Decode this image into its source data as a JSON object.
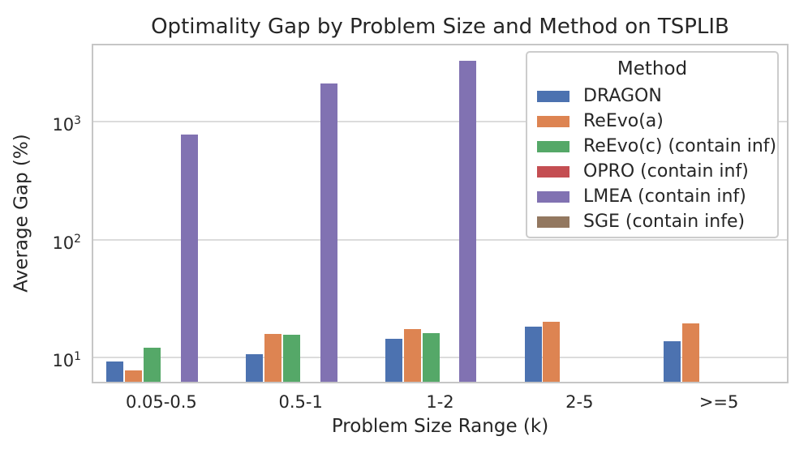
{
  "chart_data": {
    "type": "bar",
    "title": "Optimality Gap by Problem Size and Method on TSPLIB",
    "xlabel": "Problem Size Range (k)",
    "ylabel": "Average Gap (%)",
    "yscale": "log",
    "ylim": [
      6,
      4600
    ],
    "grid": true,
    "yticks": [
      {
        "base": "10",
        "exp": "1",
        "value": 10
      },
      {
        "base": "10",
        "exp": "2",
        "value": 100
      },
      {
        "base": "10",
        "exp": "3",
        "value": 1000
      }
    ],
    "categories": [
      "0.05-0.5",
      "0.5-1",
      "1-2",
      "2-5",
      ">=5"
    ],
    "series": [
      {
        "name": "DRAGON",
        "color": "#4c72b0",
        "values": [
          9.2,
          10.6,
          14.4,
          18.2,
          13.7
        ]
      },
      {
        "name": "ReEvo(a)",
        "color": "#dd8452",
        "values": [
          7.7,
          15.8,
          17.3,
          20.0,
          19.4
        ]
      },
      {
        "name": "ReEvo(c) (contain inf)",
        "color": "#55a868",
        "values": [
          12.1,
          15.6,
          16.0,
          null,
          null
        ]
      },
      {
        "name": "OPRO (contain inf)",
        "color": "#c44e52",
        "values": [
          null,
          null,
          null,
          null,
          null
        ]
      },
      {
        "name": "LMEA (contain inf)",
        "color": "#8172b2",
        "values": [
          780,
          2100,
          3300,
          null,
          null
        ]
      },
      {
        "name": "SGE (contain infe)",
        "color": "#937860",
        "values": [
          null,
          null,
          null,
          null,
          null
        ]
      }
    ],
    "legend": {
      "title": "Method",
      "position": "upper right"
    }
  },
  "colors": {
    "grid": "#dcdcdc",
    "frame": "#c6c6c6",
    "text": "#262626",
    "background": "#ffffff"
  }
}
